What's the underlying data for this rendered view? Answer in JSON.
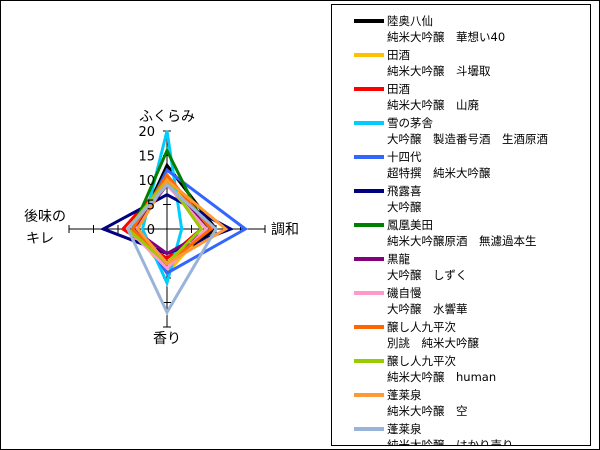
{
  "chart_data": {
    "type": "radar",
    "axes": [
      "ふくらみ",
      "調和",
      "香り",
      "後味の\nキレ"
    ],
    "rlim": [
      0,
      20
    ],
    "ticks": [
      0,
      5,
      10,
      15,
      20
    ],
    "legend_position": "right",
    "series": [
      {
        "name": "陸奥八仙\n純米大吟醸　華想い40",
        "color": "#000000",
        "values": [
          13,
          10,
          7,
          6
        ]
      },
      {
        "name": "田酒\n純米大吟醸　斗壜取",
        "color": "#ffc000",
        "values": [
          11,
          8,
          9,
          7
        ]
      },
      {
        "name": "田酒\n純米大吟醸　山廃",
        "color": "#ff0000",
        "values": [
          10,
          7,
          6,
          9
        ]
      },
      {
        "name": "雪の茅舎\n大吟醸　製造番号酒　生酒原酒",
        "color": "#00ccff",
        "values": [
          20,
          3,
          11,
          5
        ]
      },
      {
        "name": "十四代\n超特撰　純米大吟醸",
        "color": "#3366ff",
        "values": [
          12,
          16,
          9,
          6
        ]
      },
      {
        "name": "飛露喜\n大吟醸",
        "color": "#000080",
        "values": [
          7,
          13,
          5,
          13
        ]
      },
      {
        "name": "鳳凰美田\n純米大吟醸原酒　無濾過本生",
        "color": "#008000",
        "values": [
          16,
          8,
          8,
          7
        ]
      },
      {
        "name": "黒龍\n大吟醸　しずく",
        "color": "#800080",
        "values": [
          9,
          9,
          5,
          7
        ]
      },
      {
        "name": "磯自慢\n大吟醸　水響華",
        "color": "#ff99cc",
        "values": [
          9,
          8,
          8,
          8
        ]
      },
      {
        "name": "醸し人九平次\n別誂　純米大吟醸",
        "color": "#ff6600",
        "values": [
          11,
          9,
          7,
          7
        ]
      },
      {
        "name": "醸し人九平次\n純米大吟醸　human",
        "color": "#99cc00",
        "values": [
          10,
          7,
          7,
          8
        ]
      },
      {
        "name": "蓬莱泉\n純米大吟醸　空",
        "color": "#ff9933",
        "values": [
          10,
          12,
          7,
          6
        ]
      },
      {
        "name": "蓬莱泉\n純米大吟醸　はかり売り",
        "color": "#99b3d9",
        "values": [
          9,
          10,
          17,
          8
        ]
      }
    ]
  }
}
